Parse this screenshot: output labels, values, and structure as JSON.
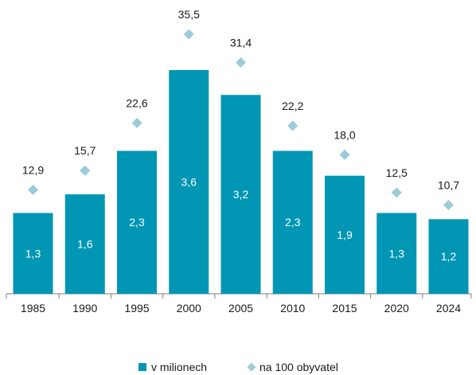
{
  "chart_data": {
    "type": "bar",
    "categories": [
      "1985",
      "1990",
      "1995",
      "2000",
      "2005",
      "2010",
      "2015",
      "2020",
      "2024"
    ],
    "series": [
      {
        "name": "v milionech",
        "kind": "bar",
        "values": [
          1.3,
          1.6,
          2.3,
          3.6,
          3.2,
          2.3,
          1.9,
          1.3,
          1.2
        ],
        "labels": [
          "1,3",
          "1,6",
          "2,3",
          "3,6",
          "3,2",
          "2,3",
          "1,9",
          "1,3",
          "1,2"
        ],
        "color": "#0096b4"
      },
      {
        "name": "na 100 obyvatel",
        "kind": "scatter",
        "marker": "diamond",
        "values": [
          12.9,
          15.7,
          22.6,
          35.5,
          31.4,
          22.2,
          18.0,
          12.5,
          10.7
        ],
        "labels": [
          "12,9",
          "15,7",
          "22,6",
          "35,5",
          "31,4",
          "22,2",
          "18,0",
          "12,5",
          "10,7"
        ],
        "color": "#9ccbd9"
      }
    ],
    "title": "",
    "xlabel": "",
    "ylabel": "",
    "bar_ylim": [
      0,
      3.6
    ],
    "point_ylim": [
      0,
      35.5
    ],
    "legend_position": "bottom",
    "grid": false
  }
}
